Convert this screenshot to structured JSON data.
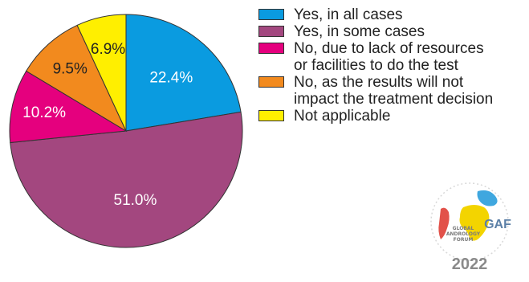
{
  "chart_data": {
    "type": "pie",
    "slices": [
      {
        "label": "Yes, in all cases",
        "value": 22.4,
        "value_label": "22.4%",
        "color": "#0a9be0"
      },
      {
        "label": "Yes, in some cases",
        "value": 51.0,
        "value_label": "51.0%",
        "color": "#a3477f"
      },
      {
        "label": "No, due to lack of resources or facilities to do the test",
        "value": 10.2,
        "value_label": "10.2%",
        "color": "#e5007e"
      },
      {
        "label": "No, as the results will not impact the treatment decision",
        "value": 9.5,
        "value_label": "9.5%",
        "color": "#f28a1e"
      },
      {
        "label": "Not applicable",
        "value": 6.9,
        "value_label": "6.9%",
        "color": "#ffef00"
      }
    ],
    "legend_position": "right",
    "start": "12 o'clock, clockwise"
  },
  "legend": [
    {
      "lines": [
        "Yes, in all cases"
      ],
      "color": "#0a9be0"
    },
    {
      "lines": [
        "Yes, in some cases"
      ],
      "color": "#a3477f"
    },
    {
      "lines": [
        "No, due to lack of resources",
        "or facilities to do the test"
      ],
      "color": "#e5007e"
    },
    {
      "lines": [
        "No, as the results will not",
        "impact the treatment decision"
      ],
      "color": "#f28a1e"
    },
    {
      "lines": [
        "Not applicable"
      ],
      "color": "#ffef00"
    }
  ],
  "logo": {
    "lines": [
      "GLOBAL",
      "ANDROLOGY",
      "FORUM"
    ],
    "mark": "GAF",
    "year": "2022"
  }
}
